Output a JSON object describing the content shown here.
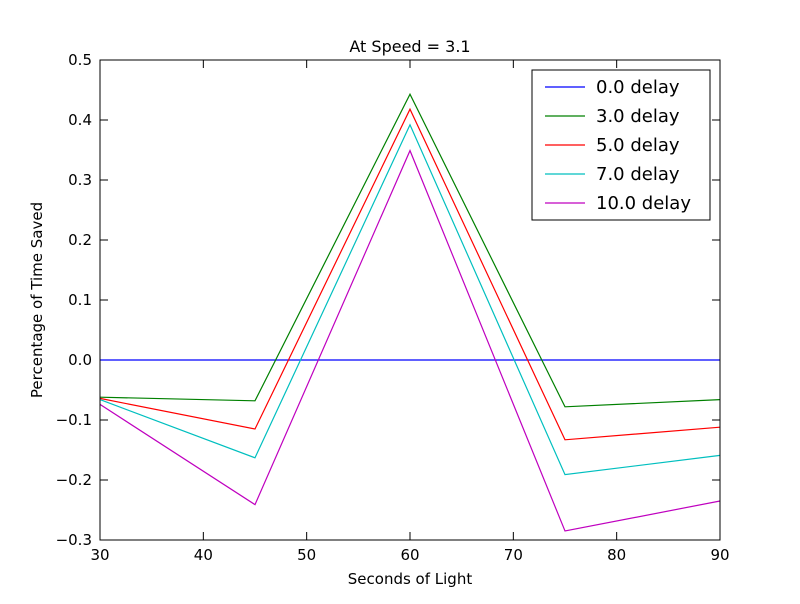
{
  "chart_data": {
    "type": "line",
    "title": "At Speed = 3.1",
    "xlabel": "Seconds of Light",
    "ylabel": "Percentage of Time Saved",
    "xlim": [
      30,
      90
    ],
    "ylim": [
      -0.3,
      0.5
    ],
    "x": [
      30,
      45,
      60,
      75,
      90
    ],
    "x_ticks": [
      30,
      40,
      50,
      60,
      70,
      80,
      90
    ],
    "x_tick_labels": [
      "30",
      "40",
      "50",
      "60",
      "70",
      "80",
      "90"
    ],
    "y_ticks": [
      -0.3,
      -0.2,
      -0.1,
      0.0,
      0.1,
      0.2,
      0.3,
      0.4,
      0.5
    ],
    "y_tick_labels": [
      "−0.3",
      "−0.2",
      "−0.1",
      "0.0",
      "0.1",
      "0.2",
      "0.3",
      "0.4",
      "0.5"
    ],
    "grid": false,
    "legend_position": "top-right",
    "series": [
      {
        "name": "0.0 delay",
        "color": "#0000ff",
        "values": [
          0.0,
          0.0,
          0.0,
          0.0,
          0.0
        ]
      },
      {
        "name": "3.0 delay",
        "color": "#008000",
        "values": [
          -0.062,
          -0.068,
          0.443,
          -0.078,
          -0.066
        ]
      },
      {
        "name": "5.0 delay",
        "color": "#ff0000",
        "values": [
          -0.064,
          -0.115,
          0.418,
          -0.133,
          -0.112
        ]
      },
      {
        "name": "7.0 delay",
        "color": "#00bfbf",
        "values": [
          -0.066,
          -0.163,
          0.392,
          -0.191,
          -0.159
        ]
      },
      {
        "name": "10.0 delay",
        "color": "#bf00bf",
        "values": [
          -0.074,
          -0.241,
          0.349,
          -0.285,
          -0.235
        ]
      }
    ]
  }
}
